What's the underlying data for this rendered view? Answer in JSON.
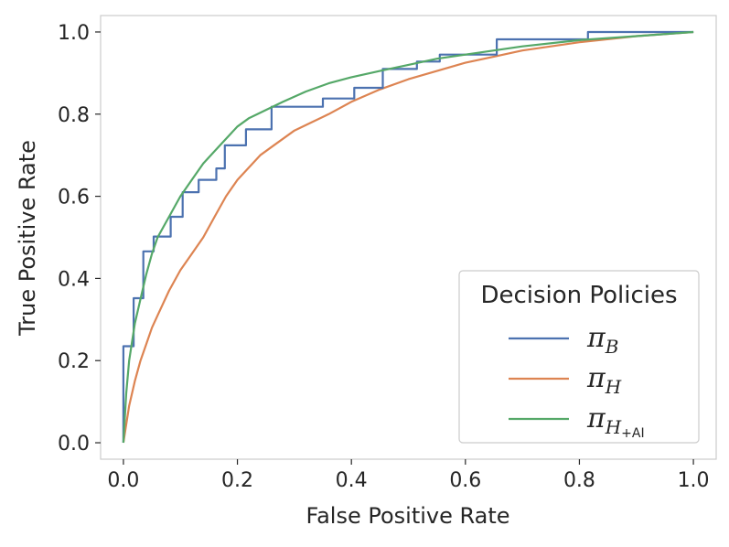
{
  "chart_data": {
    "type": "line",
    "title": "",
    "xlabel": "False Positive Rate",
    "ylabel": "True Positive Rate",
    "xlim": [
      -0.04,
      1.04
    ],
    "ylim": [
      -0.04,
      1.04
    ],
    "xticks": [
      "0.0",
      "0.2",
      "0.4",
      "0.6",
      "0.8",
      "1.0"
    ],
    "yticks": [
      "0.0",
      "0.2",
      "0.4",
      "0.6",
      "0.8",
      "1.0"
    ],
    "grid": false,
    "legend": {
      "title": "Decision Policies",
      "placement": "lower-right",
      "entries": [
        {
          "symbol": "π",
          "sub": "B",
          "sub2": ""
        },
        {
          "symbol": "π",
          "sub": "H",
          "sub2": ""
        },
        {
          "symbol": "π",
          "sub": "H",
          "sub2": "+AI"
        }
      ]
    },
    "series": [
      {
        "name": "π_B",
        "color": "#4c72b0",
        "step": true,
        "x": [
          0.0,
          0.0,
          0.018,
          0.018,
          0.035,
          0.035,
          0.053,
          0.053,
          0.083,
          0.083,
          0.104,
          0.104,
          0.132,
          0.132,
          0.163,
          0.163,
          0.178,
          0.178,
          0.215,
          0.215,
          0.26,
          0.26,
          0.35,
          0.35,
          0.405,
          0.405,
          0.455,
          0.455,
          0.515,
          0.515,
          0.555,
          0.555,
          0.655,
          0.655,
          0.815,
          0.815,
          1.0
        ],
        "y": [
          0.0,
          0.235,
          0.235,
          0.352,
          0.352,
          0.466,
          0.466,
          0.502,
          0.502,
          0.55,
          0.55,
          0.61,
          0.61,
          0.64,
          0.64,
          0.668,
          0.668,
          0.724,
          0.724,
          0.763,
          0.763,
          0.818,
          0.818,
          0.838,
          0.838,
          0.864,
          0.864,
          0.91,
          0.91,
          0.928,
          0.928,
          0.945,
          0.945,
          0.982,
          0.982,
          1.0,
          1.0
        ]
      },
      {
        "name": "π_H",
        "color": "#dd8452",
        "step": false,
        "x": [
          0.0,
          0.01,
          0.02,
          0.03,
          0.04,
          0.05,
          0.06,
          0.08,
          0.1,
          0.12,
          0.14,
          0.16,
          0.18,
          0.2,
          0.22,
          0.24,
          0.26,
          0.28,
          0.3,
          0.33,
          0.36,
          0.4,
          0.45,
          0.5,
          0.55,
          0.6,
          0.65,
          0.7,
          0.8,
          0.9,
          1.0
        ],
        "y": [
          0.0,
          0.09,
          0.15,
          0.2,
          0.24,
          0.28,
          0.31,
          0.37,
          0.42,
          0.46,
          0.5,
          0.55,
          0.6,
          0.64,
          0.67,
          0.7,
          0.72,
          0.74,
          0.76,
          0.78,
          0.8,
          0.83,
          0.86,
          0.885,
          0.905,
          0.925,
          0.94,
          0.955,
          0.975,
          0.99,
          1.0
        ]
      },
      {
        "name": "π_H+AI",
        "color": "#55a868",
        "step": false,
        "x": [
          0.0,
          0.005,
          0.01,
          0.02,
          0.03,
          0.04,
          0.05,
          0.06,
          0.08,
          0.1,
          0.12,
          0.14,
          0.16,
          0.18,
          0.2,
          0.22,
          0.25,
          0.28,
          0.32,
          0.36,
          0.4,
          0.45,
          0.5,
          0.55,
          0.6,
          0.65,
          0.7,
          0.8,
          0.9,
          1.0
        ],
        "y": [
          0.0,
          0.12,
          0.2,
          0.29,
          0.35,
          0.41,
          0.46,
          0.5,
          0.55,
          0.6,
          0.64,
          0.68,
          0.71,
          0.74,
          0.77,
          0.79,
          0.81,
          0.83,
          0.855,
          0.875,
          0.89,
          0.905,
          0.92,
          0.935,
          0.945,
          0.955,
          0.965,
          0.98,
          0.99,
          1.0
        ]
      }
    ]
  }
}
